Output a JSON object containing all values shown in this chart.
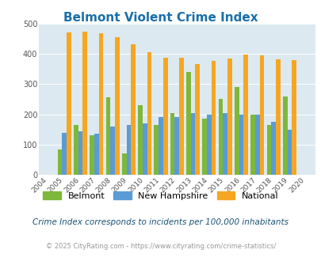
{
  "title": "Belmont Violent Crime Index",
  "years": [
    2004,
    2005,
    2006,
    2007,
    2008,
    2009,
    2010,
    2011,
    2012,
    2013,
    2014,
    2015,
    2016,
    2017,
    2018,
    2019,
    2020
  ],
  "belmont": [
    null,
    85,
    165,
    130,
    255,
    70,
    230,
    165,
    205,
    340,
    185,
    250,
    290,
    200,
    165,
    260,
    null
  ],
  "new_hampshire": [
    null,
    140,
    145,
    135,
    160,
    165,
    170,
    190,
    190,
    205,
    200,
    205,
    200,
    200,
    175,
    150,
    null
  ],
  "national": [
    null,
    470,
    472,
    467,
    455,
    432,
    405,
    387,
    387,
    367,
    377,
    383,
    397,
    394,
    381,
    379,
    null
  ],
  "belmont_color": "#7db83a",
  "nh_color": "#5b9bd5",
  "national_color": "#f5a623",
  "bg_color": "#dce9f0",
  "ylabel_vals": [
    0,
    100,
    200,
    300,
    400,
    500
  ],
  "ylim": [
    0,
    500
  ],
  "note": "Crime Index corresponds to incidents per 100,000 inhabitants",
  "copyright": "© 2025 CityRating.com - https://www.cityrating.com/crime-statistics/"
}
